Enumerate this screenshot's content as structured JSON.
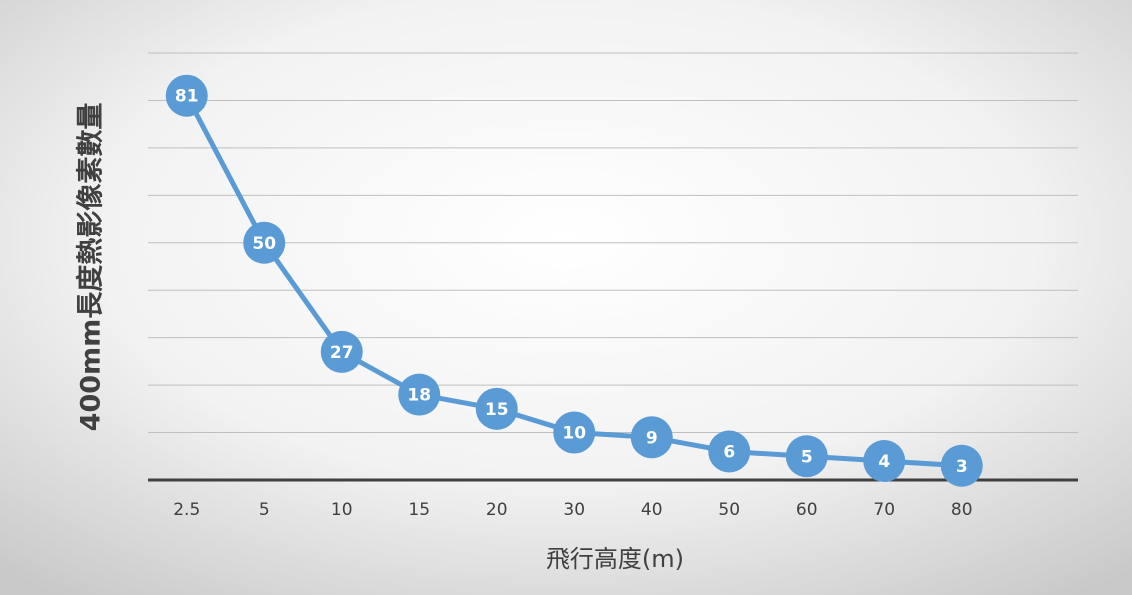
{
  "chart_data": {
    "type": "line",
    "x_label": "飛行高度(m)",
    "y_label": "400mm長度熱影像素數量",
    "categories": [
      "2.5",
      "5",
      "10",
      "15",
      "20",
      "30",
      "40",
      "50",
      "60",
      "70",
      "80",
      null
    ],
    "series": [
      {
        "name": null,
        "color": "#5b9bd5",
        "values": [
          81,
          50,
          27,
          18,
          15,
          10,
          9,
          6,
          5,
          4,
          3,
          null
        ]
      }
    ],
    "ylim": [
      0,
      90
    ],
    "yticks": [
      0,
      10,
      20,
      30,
      40,
      50,
      60,
      70,
      80,
      90
    ],
    "grid": true
  }
}
